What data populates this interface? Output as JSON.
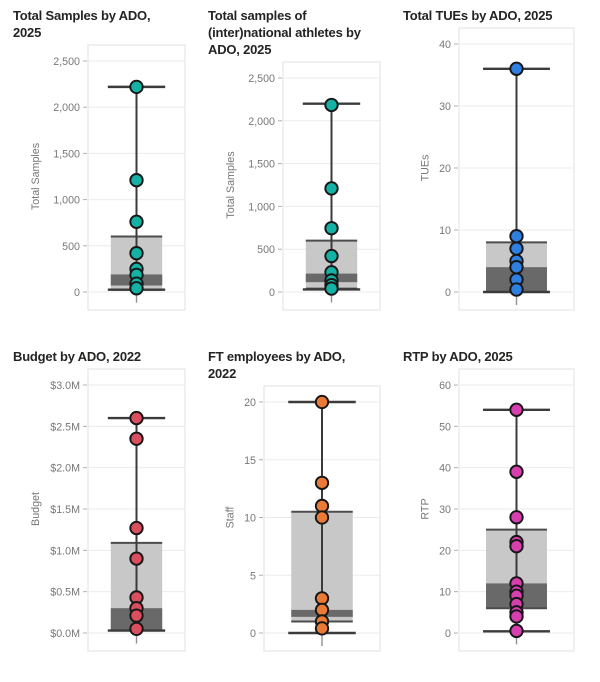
{
  "page": {
    "background": "#ffffff"
  },
  "styles": {
    "title_color": "#252423",
    "axis_text_color": "#777777",
    "gridline_color": "#ebebeb",
    "plot_border_color": "#e2e2e2",
    "box_fill": "#c8c8c8",
    "box_band_fill": "#696969",
    "box_edge_color": "#4d4d4d",
    "whisker_color": "#3b3b3b",
    "dot_stroke": "#161616",
    "category_tick_color": "#909090"
  },
  "chart_data": [
    {
      "id": "total-samples",
      "type": "box",
      "title": "Total Samples by ADO, 2025",
      "y_axis_title": "Total Samples",
      "ticks": [
        0,
        500,
        1000,
        1500,
        2000,
        2500
      ],
      "tick_labels": [
        "0",
        "500",
        "1,000",
        "1,500",
        "2,000",
        "2,500"
      ],
      "ylim": [
        0,
        2500
      ],
      "box": {
        "q1": 25,
        "q3": 600,
        "band_low": 70,
        "band_high": 190
      },
      "whiskers": {
        "low": 25,
        "high": 2220
      },
      "points": [
        2220,
        1210,
        760,
        420,
        250,
        185,
        90,
        40
      ],
      "point_color": "#14b2a5"
    },
    {
      "id": "intl-samples",
      "type": "box",
      "title": "Total samples of (inter)national athletes by ADO, 2025",
      "y_axis_title": "Total Samples",
      "ticks": [
        0,
        500,
        1000,
        1500,
        2000,
        2500
      ],
      "tick_labels": [
        "0",
        "500",
        "1,000",
        "1,500",
        "2,000",
        "2,500"
      ],
      "ylim": [
        0,
        2500
      ],
      "box": {
        "q1": 40,
        "q3": 600,
        "band_low": 115,
        "band_high": 215
      },
      "whiskers": {
        "low": 30,
        "high": 2200
      },
      "points": [
        2185,
        1210,
        745,
        420,
        230,
        135,
        80,
        40
      ],
      "point_color": "#14b2a5"
    },
    {
      "id": "tues",
      "type": "box",
      "title": "Total TUEs by ADO, 2025",
      "y_axis_title": "TUEs",
      "ticks": [
        0,
        10,
        20,
        30,
        40
      ],
      "tick_labels": [
        "0",
        "10",
        "20",
        "30",
        "40"
      ],
      "ylim": [
        0,
        40
      ],
      "box": {
        "q1": 0,
        "q3": 8,
        "band_low": 0,
        "band_high": 4
      },
      "whiskers": {
        "low": 0,
        "high": 36
      },
      "points": [
        36,
        9,
        7,
        5,
        4,
        2,
        0.4
      ],
      "point_color": "#2f7fe0"
    },
    {
      "id": "budget",
      "type": "box",
      "title": "Budget by ADO, 2022",
      "y_axis_title": "Budget",
      "ticks": [
        0,
        0.5,
        1,
        1.5,
        2,
        2.5,
        3
      ],
      "tick_labels": [
        "$0.0M",
        "$0.5M",
        "$1.0M",
        "$1.5M",
        "$2.0M",
        "$2.5M",
        "$3.0M"
      ],
      "ylim": [
        0,
        3
      ],
      "box": {
        "q1": 0.03,
        "q3": 1.09,
        "band_low": 0.03,
        "band_high": 0.3
      },
      "whiskers": {
        "low": 0.03,
        "high": 2.6
      },
      "points": [
        2.6,
        2.35,
        1.27,
        0.9,
        0.43,
        0.3,
        0.21,
        0.05
      ],
      "point_color": "#d94f60"
    },
    {
      "id": "ft-employees",
      "type": "box",
      "title": "FT employees by ADO, 2022",
      "y_axis_title": "Staff",
      "ticks": [
        0,
        5,
        10,
        15,
        20
      ],
      "tick_labels": [
        "0",
        "5",
        "10",
        "15",
        "20"
      ],
      "ylim": [
        0,
        20
      ],
      "box": {
        "q1": 1,
        "q3": 10.5,
        "band_low": 1.4,
        "band_high": 2
      },
      "whiskers": {
        "low": 0,
        "high": 20
      },
      "points": [
        20,
        13,
        11,
        10,
        3,
        2,
        1,
        0.4
      ],
      "point_color": "#ea7a35"
    },
    {
      "id": "rtp",
      "type": "box",
      "title": "RTP by ADO, 2025",
      "y_axis_title": "RTP",
      "ticks": [
        0,
        10,
        20,
        30,
        40,
        50,
        60
      ],
      "tick_labels": [
        "0",
        "10",
        "20",
        "30",
        "40",
        "50",
        "60"
      ],
      "ylim": [
        0,
        60
      ],
      "box": {
        "q1": 6,
        "q3": 25,
        "band_low": 6,
        "band_high": 12
      },
      "whiskers": {
        "low": 0.4,
        "high": 54
      },
      "points": [
        54,
        39,
        28,
        22,
        21,
        12,
        10,
        9,
        7,
        5,
        4,
        0.5
      ],
      "point_color": "#d83fae"
    }
  ]
}
